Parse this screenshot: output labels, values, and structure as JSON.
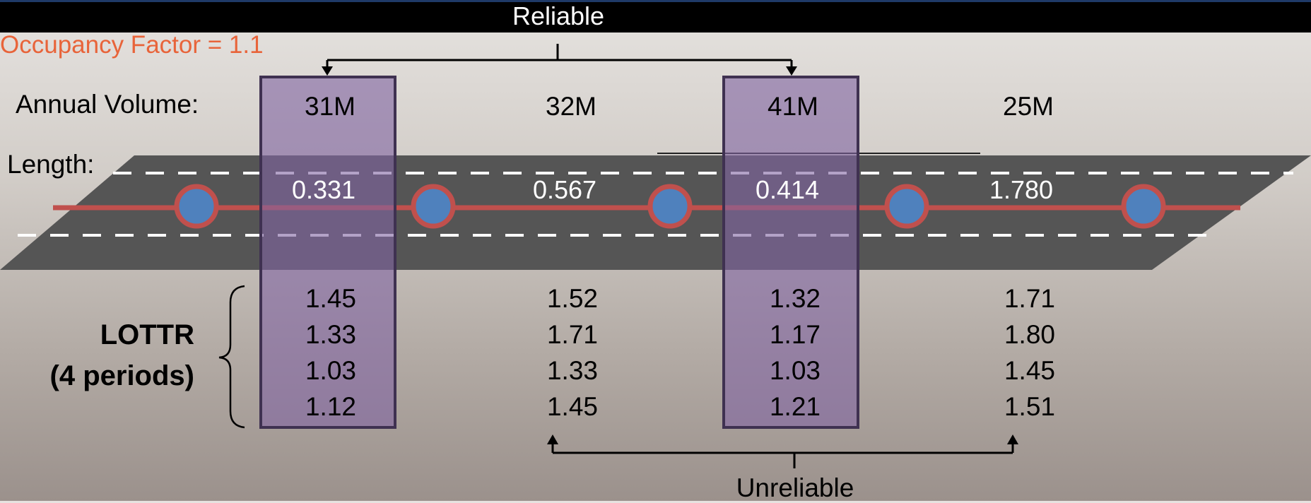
{
  "header": {
    "title": "Reliable"
  },
  "occupancy_label": "Occupancy Factor = 1.1",
  "row_labels": {
    "annual_volume": "Annual Volume:",
    "length": "Length:",
    "lottr_line1": "LOTTR",
    "lottr_line2": "(4 periods)"
  },
  "unreliable_label": "Unreliable",
  "segments": [
    {
      "volume": "31M",
      "length": "0.331",
      "lottr": [
        "1.45",
        "1.33",
        "1.03",
        "1.12"
      ],
      "highlighted": true
    },
    {
      "volume": "32M",
      "length": "0.567",
      "lottr": [
        "1.52",
        "1.71",
        "1.33",
        "1.45"
      ],
      "highlighted": false
    },
    {
      "volume": "41M",
      "length": "0.414",
      "lottr": [
        "1.32",
        "1.17",
        "1.03",
        "1.21"
      ],
      "highlighted": true
    },
    {
      "volume": "25M",
      "length": "1.780",
      "lottr": [
        "1.71",
        "1.80",
        "1.45",
        "1.51"
      ],
      "highlighted": false
    }
  ],
  "colors": {
    "road": "#555555",
    "route_line": "#c0504d",
    "node_fill": "#4f81bd",
    "node_stroke": "#c0504d",
    "highlight_fill": "#8064a2",
    "highlight_stroke": "#3f3151",
    "occupancy_text": "#e8643a"
  }
}
